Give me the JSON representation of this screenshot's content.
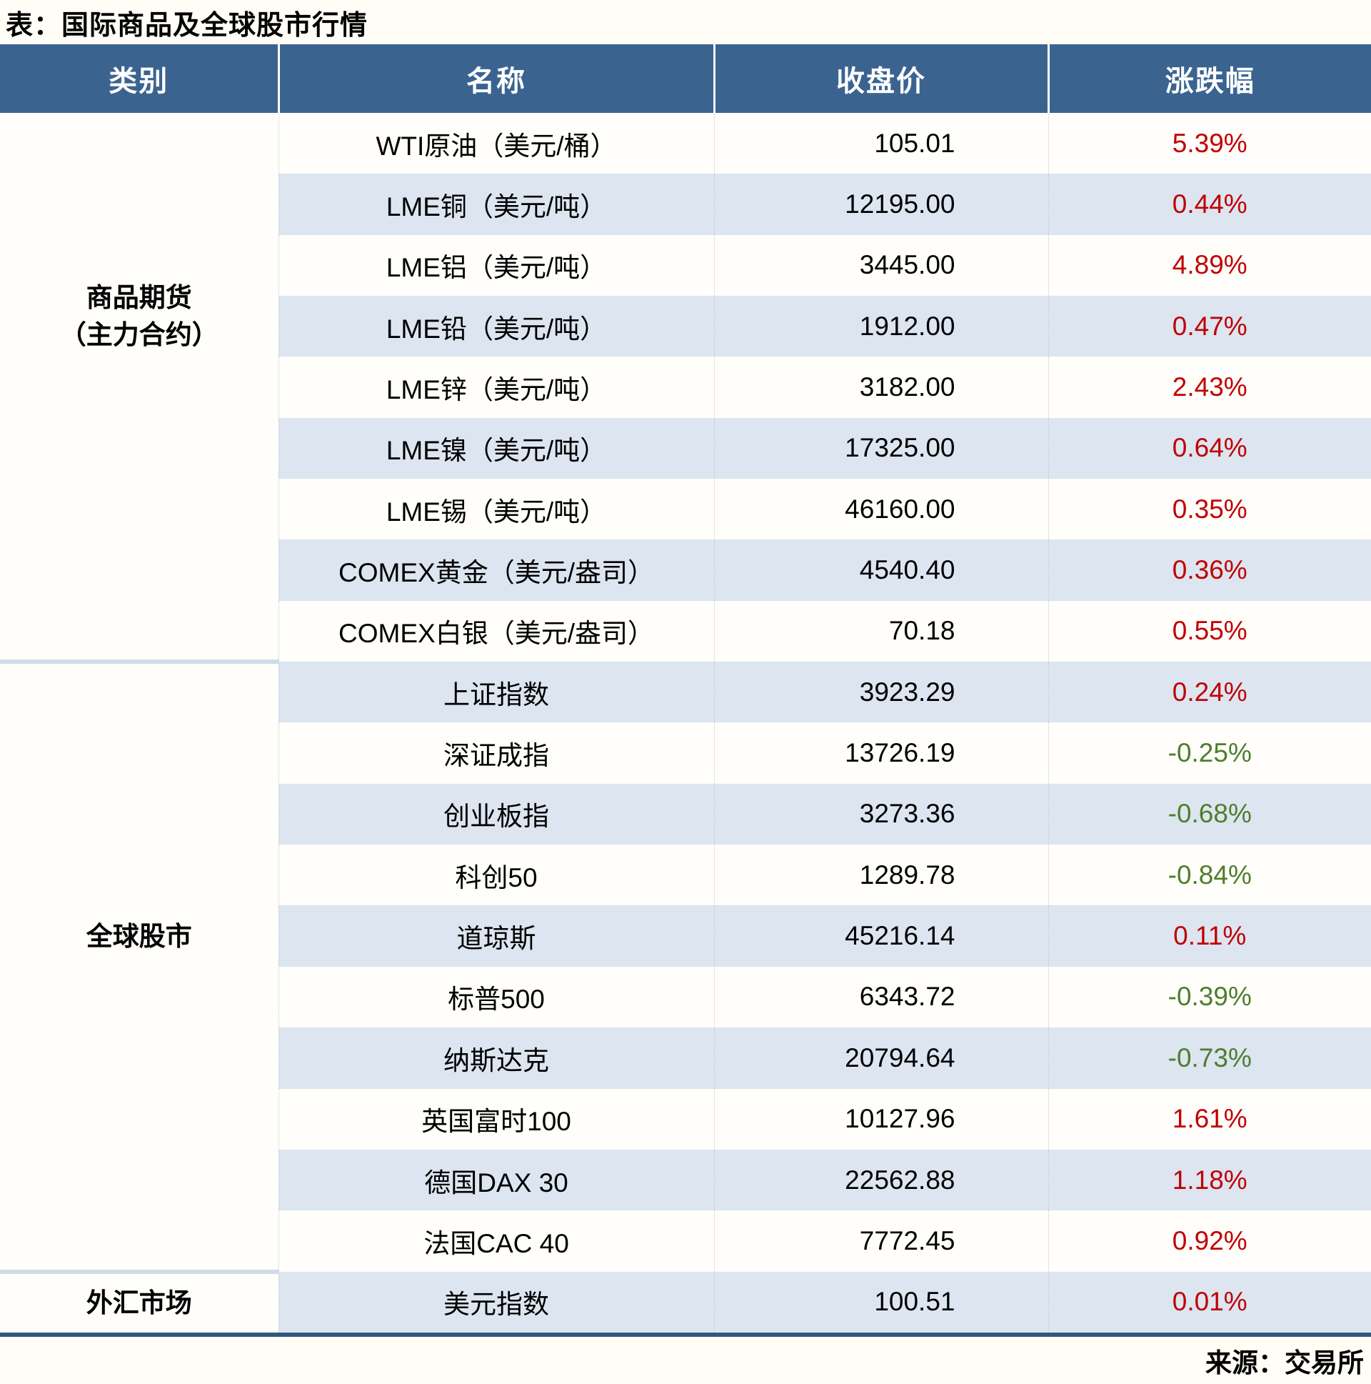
{
  "title": "表：国际商品及全球股市行情",
  "footer": {
    "source": "来源：交易所"
  },
  "colors": {
    "header_bg": "#3a6390",
    "header_text": "#ffffff",
    "alt_row_bg": "#dce5f0",
    "up_red": "#c00000",
    "down_green": "#4f7d2d",
    "section_divider": "#cfdbe7",
    "bottom_rule": "#31597e"
  },
  "table": {
    "headers": [
      "类别",
      "名称",
      "收盘价",
      "涨跌幅"
    ],
    "sections": [
      {
        "label_lines": [
          "商品期货",
          "（主力合约）"
        ],
        "rows": [
          {
            "name": "WTI原油（美元/桶）",
            "close": "105.01",
            "change": "5.39%",
            "direction": "up"
          },
          {
            "name": "LME铜（美元/吨）",
            "close": "12195.00",
            "change": "0.44%",
            "direction": "up"
          },
          {
            "name": "LME铝（美元/吨）",
            "close": "3445.00",
            "change": "4.89%",
            "direction": "up"
          },
          {
            "name": "LME铅（美元/吨）",
            "close": "1912.00",
            "change": "0.47%",
            "direction": "up"
          },
          {
            "name": "LME锌（美元/吨）",
            "close": "3182.00",
            "change": "2.43%",
            "direction": "up"
          },
          {
            "name": "LME镍（美元/吨）",
            "close": "17325.00",
            "change": "0.64%",
            "direction": "up"
          },
          {
            "name": "LME锡（美元/吨）",
            "close": "46160.00",
            "change": "0.35%",
            "direction": "up"
          },
          {
            "name": "COMEX黄金（美元/盎司）",
            "close": "4540.40",
            "change": "0.36%",
            "direction": "up"
          },
          {
            "name": "COMEX白银（美元/盎司）",
            "close": "70.18",
            "change": "0.55%",
            "direction": "up"
          }
        ]
      },
      {
        "label_lines": [
          "全球股市"
        ],
        "rows": [
          {
            "name": "上证指数",
            "close": "3923.29",
            "change": "0.24%",
            "direction": "up"
          },
          {
            "name": "深证成指",
            "close": "13726.19",
            "change": "-0.25%",
            "direction": "down"
          },
          {
            "name": "创业板指",
            "close": "3273.36",
            "change": "-0.68%",
            "direction": "down"
          },
          {
            "name": "科创50",
            "close": "1289.78",
            "change": "-0.84%",
            "direction": "down"
          },
          {
            "name": "道琼斯",
            "close": "45216.14",
            "change": "0.11%",
            "direction": "up"
          },
          {
            "name": "标普500",
            "close": "6343.72",
            "change": "-0.39%",
            "direction": "down"
          },
          {
            "name": "纳斯达克",
            "close": "20794.64",
            "change": "-0.73%",
            "direction": "down"
          },
          {
            "name": "英国富时100",
            "close": "10127.96",
            "change": "1.61%",
            "direction": "up"
          },
          {
            "name": "德国DAX 30",
            "close": "22562.88",
            "change": "1.18%",
            "direction": "up"
          },
          {
            "name": "法国CAC 40",
            "close": "7772.45",
            "change": "0.92%",
            "direction": "up"
          }
        ]
      },
      {
        "label_lines": [
          "外汇市场"
        ],
        "rows": [
          {
            "name": "美元指数",
            "close": "100.51",
            "change": "0.01%",
            "direction": "up"
          }
        ]
      }
    ]
  },
  "chart_data": {
    "type": "table",
    "title": "表：国际商品及全球股市行情",
    "columns": [
      "类别",
      "名称",
      "收盘价",
      "涨跌幅"
    ],
    "rows": [
      [
        "商品期货（主力合约）",
        "WTI原油（美元/桶）",
        105.01,
        "5.39%"
      ],
      [
        "商品期货（主力合约）",
        "LME铜（美元/吨）",
        12195.0,
        "0.44%"
      ],
      [
        "商品期货（主力合约）",
        "LME铝（美元/吨）",
        3445.0,
        "4.89%"
      ],
      [
        "商品期货（主力合约）",
        "LME铅（美元/吨）",
        1912.0,
        "0.47%"
      ],
      [
        "商品期货（主力合约）",
        "LME锌（美元/吨）",
        3182.0,
        "2.43%"
      ],
      [
        "商品期货（主力合约）",
        "LME镍（美元/吨）",
        17325.0,
        "0.64%"
      ],
      [
        "商品期货（主力合约）",
        "LME锡（美元/吨）",
        46160.0,
        "0.35%"
      ],
      [
        "商品期货（主力合约）",
        "COMEX黄金（美元/盎司）",
        4540.4,
        "0.36%"
      ],
      [
        "商品期货（主力合约）",
        "COMEX白银（美元/盎司）",
        70.18,
        "0.55%"
      ],
      [
        "全球股市",
        "上证指数",
        3923.29,
        "0.24%"
      ],
      [
        "全球股市",
        "深证成指",
        13726.19,
        "-0.25%"
      ],
      [
        "全球股市",
        "创业板指",
        3273.36,
        "-0.68%"
      ],
      [
        "全球股市",
        "科创50",
        1289.78,
        "-0.84%"
      ],
      [
        "全球股市",
        "道琼斯",
        45216.14,
        "0.11%"
      ],
      [
        "全球股市",
        "标普500",
        6343.72,
        "-0.39%"
      ],
      [
        "全球股市",
        "纳斯达克",
        20794.64,
        "-0.73%"
      ],
      [
        "全球股市",
        "英国富时100",
        10127.96,
        "1.61%"
      ],
      [
        "全球股市",
        "德国DAX 30",
        22562.88,
        "1.18%"
      ],
      [
        "全球股市",
        "法国CAC 40",
        7772.45,
        "0.92%"
      ],
      [
        "外汇市场",
        "美元指数",
        100.51,
        "0.01%"
      ]
    ],
    "source": "来源：交易所"
  }
}
